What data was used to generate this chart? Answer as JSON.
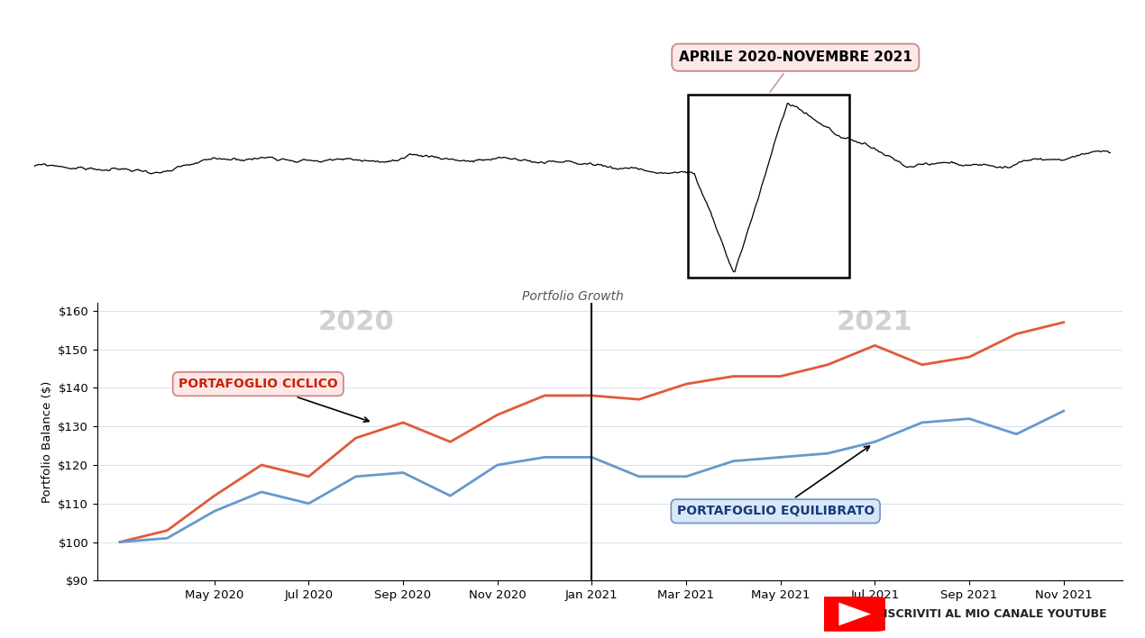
{
  "title_bottom": "Portfolio Growth",
  "ylabel": "Portfolio Balance ($)",
  "background_color": "#ffffff",
  "annotation_top": "APRILE 2020-NOVEMBRE 2021",
  "ciclico_values": [
    100,
    103,
    112,
    120,
    117,
    127,
    131,
    126,
    133,
    138,
    138,
    137,
    141,
    143,
    143,
    146,
    151,
    146,
    148,
    154,
    157
  ],
  "equilibrato_values": [
    100,
    101,
    108,
    113,
    110,
    117,
    118,
    112,
    120,
    122,
    122,
    117,
    117,
    121,
    122,
    123,
    126,
    131,
    132,
    128,
    134
  ],
  "ciclico_color": "#e05a3a",
  "equilibrato_color": "#6699cc",
  "ylim": [
    90,
    162
  ],
  "yticks": [
    90,
    100,
    110,
    120,
    130,
    140,
    150,
    160
  ],
  "ytick_labels": [
    "$90",
    "$100",
    "$110",
    "$120",
    "$130",
    "$140",
    "$150",
    "$160"
  ],
  "xtick_labels": [
    "May 2020",
    "Jul 2020",
    "Sep 2020",
    "Nov 2020",
    "Jan 2021",
    "Mar 2021",
    "May 2021",
    "Jul 2021",
    "Sep 2021",
    "Nov 2021"
  ]
}
